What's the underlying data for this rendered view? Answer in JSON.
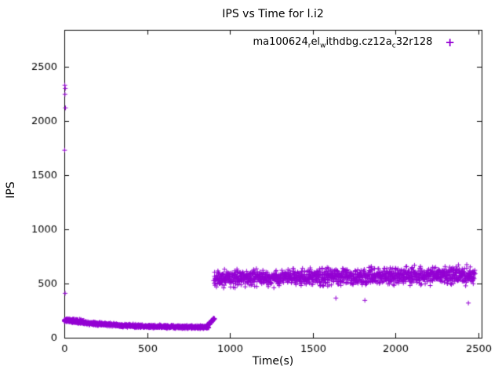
{
  "chart_data": {
    "type": "scatter",
    "title": "IPS vs Time for l.i2",
    "xlabel": "Time(s)",
    "ylabel": "IPS",
    "xlim": [
      0,
      2520
    ],
    "ylim": [
      0,
      2840
    ],
    "xticks": [
      0,
      500,
      1000,
      1500,
      2000,
      2500
    ],
    "yticks": [
      0,
      500,
      1000,
      1500,
      2000,
      2500
    ],
    "grid": false,
    "legend": {
      "position": "top-right",
      "marker": "+",
      "color": "#9400d3",
      "label_plain": "ma100624_rel_with_dbg.cz12a_c32r128",
      "label_parts": [
        {
          "text": "ma100624",
          "sub": false
        },
        {
          "text": "r",
          "sub": true
        },
        {
          "text": "el",
          "sub": false
        },
        {
          "text": "w",
          "sub": true
        },
        {
          "text": "ithdbg.cz12a",
          "sub": false
        },
        {
          "text": "c",
          "sub": true
        },
        {
          "text": "32r128",
          "sub": false
        }
      ]
    },
    "series": [
      {
        "name": "ma100624_rel_with_dbg.cz12a_c32r128",
        "marker": "plus",
        "color": "#9400d3",
        "description": "Dense decaying band ~160->95 IPS from t=0..870s, brief rise to ~175 near t=900s, then noisy band centered ~560 IPS (range ~430-720) from t=905..2480s",
        "segments": [
          {
            "x_start": 0,
            "x_end": 870,
            "y_start": 162,
            "y_end": 93,
            "y_jitter": 20,
            "x_jitter": 8,
            "count": 1100,
            "shape": "decay"
          },
          {
            "x_start": 0,
            "x_end": 115,
            "y_start": 172,
            "y_end": 158,
            "y_jitter": 16,
            "x_jitter": 10,
            "count": 45,
            "shape": "linear"
          },
          {
            "x_start": 858,
            "x_end": 905,
            "y_start": 100,
            "y_end": 178,
            "y_jitter": 14,
            "x_jitter": 6,
            "count": 80,
            "shape": "linear"
          },
          {
            "x_start": 905,
            "x_end": 2480,
            "y_start": 548,
            "y_end": 578,
            "y_jitter": 110,
            "x_jitter": 10,
            "count": 1500,
            "shape": "linear"
          }
        ],
        "outliers": [
          [
            3,
            2330
          ],
          [
            6,
            2300
          ],
          [
            4,
            2245
          ],
          [
            7,
            2120
          ],
          [
            2,
            1730
          ],
          [
            5,
            410
          ],
          [
            1640,
            365
          ],
          [
            1815,
            345
          ],
          [
            2440,
            320
          ],
          [
            2455,
            540
          ]
        ]
      }
    ]
  }
}
